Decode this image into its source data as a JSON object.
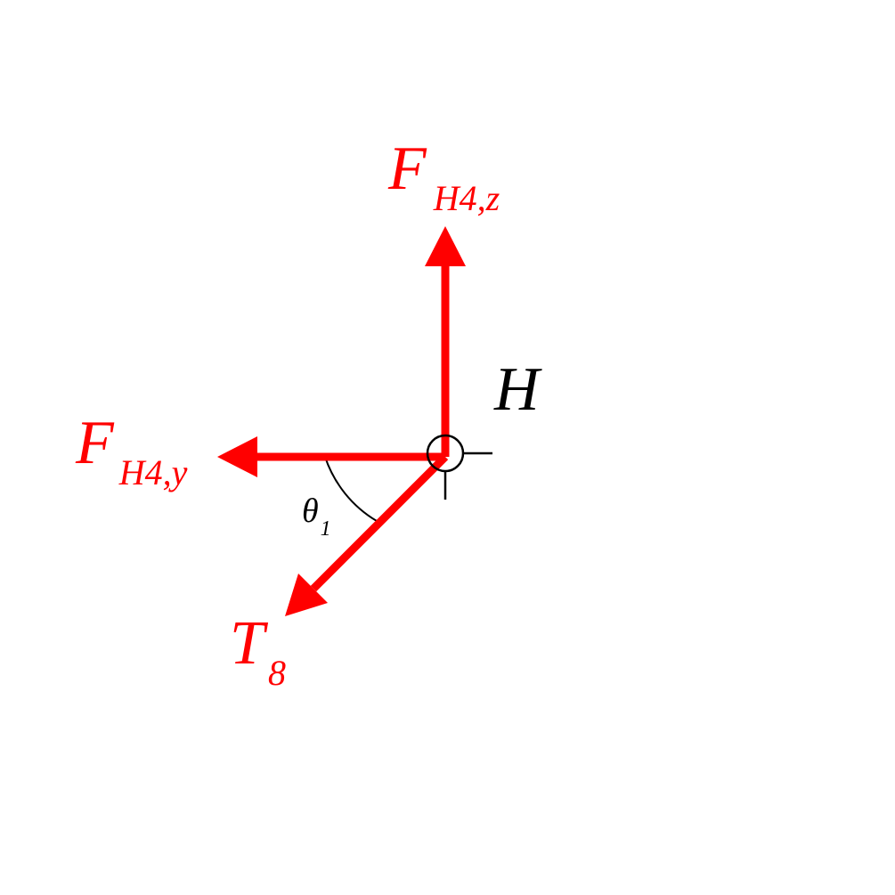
{
  "diagram": {
    "point_label": "H",
    "forces": {
      "vertical": {
        "symbol": "F",
        "subscript": "H4,z"
      },
      "horizontal": {
        "symbol": "F",
        "subscript": "H4,y"
      },
      "tension": {
        "symbol": "T",
        "subscript": "8"
      }
    },
    "angle": {
      "symbol": "θ",
      "subscript": "1"
    }
  },
  "colors": {
    "force": "#ff0000",
    "annotation": "#000000",
    "background": "#ffffff"
  }
}
